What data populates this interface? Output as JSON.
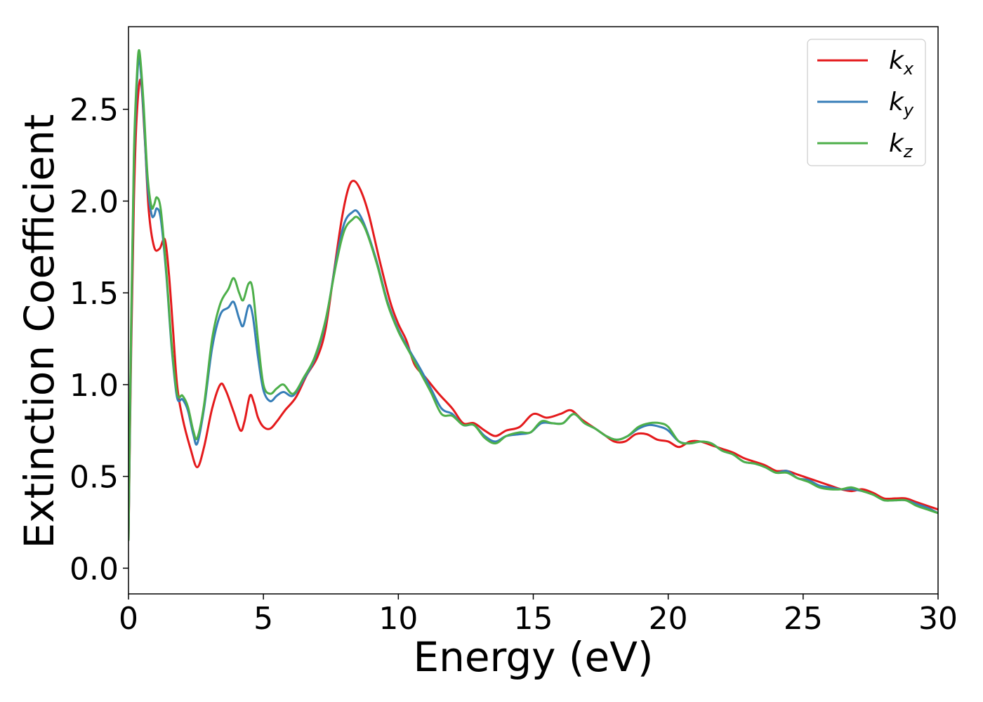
{
  "chart_data": {
    "type": "line",
    "xlabel": "Energy (eV)",
    "ylabel": "Extinction Coefficient",
    "xlim": [
      0,
      30
    ],
    "ylim": [
      -0.14,
      2.95
    ],
    "xticks": [
      0,
      5,
      10,
      15,
      20,
      25,
      30
    ],
    "xtick_labels": [
      "0",
      "5",
      "10",
      "15",
      "20",
      "25",
      "30"
    ],
    "yticks": [
      0.0,
      0.5,
      1.0,
      1.5,
      2.0,
      2.5
    ],
    "ytick_labels": [
      "0.0",
      "0.5",
      "1.0",
      "1.5",
      "2.0",
      "2.5"
    ],
    "grid": false,
    "legend_position": "top-right",
    "series": [
      {
        "name": "k_x",
        "label_main": "k",
        "label_sub": "x",
        "color": "#e41a1c",
        "points": [
          [
            0,
            0.15
          ],
          [
            0.1,
            1.2
          ],
          [
            0.2,
            2.0
          ],
          [
            0.3,
            2.45
          ],
          [
            0.45,
            2.66
          ],
          [
            0.6,
            2.35
          ],
          [
            0.75,
            1.95
          ],
          [
            0.95,
            1.75
          ],
          [
            1.15,
            1.74
          ],
          [
            1.35,
            1.79
          ],
          [
            1.5,
            1.6
          ],
          [
            1.65,
            1.3
          ],
          [
            1.8,
            1.0
          ],
          [
            2.0,
            0.82
          ],
          [
            2.3,
            0.65
          ],
          [
            2.55,
            0.55
          ],
          [
            2.8,
            0.66
          ],
          [
            3.1,
            0.87
          ],
          [
            3.4,
            1.0
          ],
          [
            3.6,
            0.97
          ],
          [
            3.9,
            0.85
          ],
          [
            4.15,
            0.75
          ],
          [
            4.3,
            0.8
          ],
          [
            4.5,
            0.94
          ],
          [
            4.65,
            0.9
          ],
          [
            4.8,
            0.82
          ],
          [
            5.0,
            0.77
          ],
          [
            5.25,
            0.76
          ],
          [
            5.5,
            0.8
          ],
          [
            5.8,
            0.86
          ],
          [
            6.2,
            0.93
          ],
          [
            6.6,
            1.05
          ],
          [
            7.0,
            1.15
          ],
          [
            7.3,
            1.3
          ],
          [
            7.6,
            1.6
          ],
          [
            7.9,
            1.9
          ],
          [
            8.15,
            2.07
          ],
          [
            8.35,
            2.11
          ],
          [
            8.6,
            2.06
          ],
          [
            8.9,
            1.93
          ],
          [
            9.3,
            1.68
          ],
          [
            9.7,
            1.45
          ],
          [
            10.0,
            1.33
          ],
          [
            10.3,
            1.24
          ],
          [
            10.6,
            1.11
          ],
          [
            11.0,
            1.04
          ],
          [
            11.5,
            0.95
          ],
          [
            12.0,
            0.87
          ],
          [
            12.4,
            0.79
          ],
          [
            12.8,
            0.79
          ],
          [
            13.2,
            0.75
          ],
          [
            13.6,
            0.72
          ],
          [
            14.0,
            0.75
          ],
          [
            14.5,
            0.77
          ],
          [
            15.0,
            0.84
          ],
          [
            15.5,
            0.82
          ],
          [
            16.0,
            0.84
          ],
          [
            16.4,
            0.86
          ],
          [
            16.8,
            0.81
          ],
          [
            17.2,
            0.77
          ],
          [
            17.6,
            0.73
          ],
          [
            18.0,
            0.69
          ],
          [
            18.4,
            0.69
          ],
          [
            18.8,
            0.73
          ],
          [
            19.2,
            0.73
          ],
          [
            19.6,
            0.7
          ],
          [
            20.0,
            0.69
          ],
          [
            20.4,
            0.66
          ],
          [
            20.8,
            0.69
          ],
          [
            21.2,
            0.69
          ],
          [
            21.6,
            0.67
          ],
          [
            22.0,
            0.65
          ],
          [
            22.4,
            0.63
          ],
          [
            22.8,
            0.6
          ],
          [
            23.2,
            0.58
          ],
          [
            23.6,
            0.56
          ],
          [
            24.0,
            0.53
          ],
          [
            24.4,
            0.53
          ],
          [
            24.8,
            0.51
          ],
          [
            25.2,
            0.49
          ],
          [
            25.6,
            0.47
          ],
          [
            26.0,
            0.45
          ],
          [
            26.4,
            0.43
          ],
          [
            26.8,
            0.42
          ],
          [
            27.2,
            0.43
          ],
          [
            27.6,
            0.41
          ],
          [
            28.0,
            0.38
          ],
          [
            28.4,
            0.38
          ],
          [
            28.8,
            0.38
          ],
          [
            29.2,
            0.36
          ],
          [
            29.6,
            0.34
          ],
          [
            30.0,
            0.32
          ]
        ]
      },
      {
        "name": "k_y",
        "label_main": "k",
        "label_sub": "y",
        "color": "#377eb8",
        "points": [
          [
            0,
            0.15
          ],
          [
            0.1,
            1.3
          ],
          [
            0.2,
            2.2
          ],
          [
            0.3,
            2.6
          ],
          [
            0.4,
            2.78
          ],
          [
            0.55,
            2.5
          ],
          [
            0.7,
            2.1
          ],
          [
            0.85,
            1.93
          ],
          [
            0.95,
            1.92
          ],
          [
            1.05,
            1.96
          ],
          [
            1.2,
            1.9
          ],
          [
            1.4,
            1.6
          ],
          [
            1.6,
            1.2
          ],
          [
            1.8,
            0.93
          ],
          [
            2.0,
            0.92
          ],
          [
            2.2,
            0.86
          ],
          [
            2.4,
            0.73
          ],
          [
            2.55,
            0.68
          ],
          [
            2.8,
            0.87
          ],
          [
            3.1,
            1.2
          ],
          [
            3.4,
            1.38
          ],
          [
            3.7,
            1.42
          ],
          [
            3.9,
            1.45
          ],
          [
            4.1,
            1.36
          ],
          [
            4.25,
            1.32
          ],
          [
            4.45,
            1.43
          ],
          [
            4.6,
            1.38
          ],
          [
            4.8,
            1.15
          ],
          [
            5.0,
            0.97
          ],
          [
            5.25,
            0.91
          ],
          [
            5.5,
            0.94
          ],
          [
            5.75,
            0.96
          ],
          [
            6.1,
            0.94
          ],
          [
            6.5,
            1.03
          ],
          [
            6.9,
            1.14
          ],
          [
            7.3,
            1.34
          ],
          [
            7.7,
            1.68
          ],
          [
            8.0,
            1.88
          ],
          [
            8.3,
            1.94
          ],
          [
            8.5,
            1.94
          ],
          [
            8.8,
            1.85
          ],
          [
            9.2,
            1.67
          ],
          [
            9.6,
            1.45
          ],
          [
            10.0,
            1.3
          ],
          [
            10.4,
            1.19
          ],
          [
            10.8,
            1.09
          ],
          [
            11.2,
            0.98
          ],
          [
            11.6,
            0.87
          ],
          [
            12.0,
            0.84
          ],
          [
            12.4,
            0.78
          ],
          [
            12.8,
            0.78
          ],
          [
            13.2,
            0.72
          ],
          [
            13.6,
            0.69
          ],
          [
            14.0,
            0.72
          ],
          [
            14.5,
            0.73
          ],
          [
            14.9,
            0.74
          ],
          [
            15.3,
            0.79
          ],
          [
            15.7,
            0.79
          ],
          [
            16.1,
            0.79
          ],
          [
            16.5,
            0.84
          ],
          [
            16.9,
            0.79
          ],
          [
            17.3,
            0.76
          ],
          [
            17.7,
            0.72
          ],
          [
            18.1,
            0.7
          ],
          [
            18.5,
            0.72
          ],
          [
            18.9,
            0.76
          ],
          [
            19.3,
            0.78
          ],
          [
            19.7,
            0.77
          ],
          [
            20.0,
            0.75
          ],
          [
            20.4,
            0.69
          ],
          [
            20.8,
            0.68
          ],
          [
            21.2,
            0.69
          ],
          [
            21.6,
            0.68
          ],
          [
            22.0,
            0.64
          ],
          [
            22.4,
            0.62
          ],
          [
            22.8,
            0.58
          ],
          [
            23.2,
            0.57
          ],
          [
            23.6,
            0.55
          ],
          [
            24.0,
            0.52
          ],
          [
            24.4,
            0.53
          ],
          [
            24.8,
            0.49
          ],
          [
            25.2,
            0.48
          ],
          [
            25.6,
            0.45
          ],
          [
            26.0,
            0.44
          ],
          [
            26.4,
            0.43
          ],
          [
            26.8,
            0.43
          ],
          [
            27.2,
            0.42
          ],
          [
            27.6,
            0.4
          ],
          [
            28.0,
            0.37
          ],
          [
            28.4,
            0.37
          ],
          [
            28.8,
            0.37
          ],
          [
            29.2,
            0.35
          ],
          [
            29.6,
            0.33
          ],
          [
            30.0,
            0.3
          ]
        ]
      },
      {
        "name": "k_z",
        "label_main": "k",
        "label_sub": "z",
        "color": "#4daf4a",
        "points": [
          [
            0,
            0.15
          ],
          [
            0.1,
            1.35
          ],
          [
            0.2,
            2.25
          ],
          [
            0.3,
            2.65
          ],
          [
            0.4,
            2.82
          ],
          [
            0.55,
            2.55
          ],
          [
            0.7,
            2.15
          ],
          [
            0.85,
            1.97
          ],
          [
            0.95,
            1.98
          ],
          [
            1.05,
            2.02
          ],
          [
            1.2,
            1.95
          ],
          [
            1.4,
            1.62
          ],
          [
            1.6,
            1.22
          ],
          [
            1.8,
            0.95
          ],
          [
            2.0,
            0.94
          ],
          [
            2.2,
            0.88
          ],
          [
            2.4,
            0.75
          ],
          [
            2.55,
            0.71
          ],
          [
            2.8,
            0.89
          ],
          [
            3.1,
            1.25
          ],
          [
            3.4,
            1.44
          ],
          [
            3.7,
            1.52
          ],
          [
            3.9,
            1.58
          ],
          [
            4.1,
            1.5
          ],
          [
            4.25,
            1.46
          ],
          [
            4.45,
            1.55
          ],
          [
            4.6,
            1.52
          ],
          [
            4.8,
            1.24
          ],
          [
            5.0,
            1.0
          ],
          [
            5.25,
            0.95
          ],
          [
            5.5,
            0.98
          ],
          [
            5.75,
            1.0
          ],
          [
            6.1,
            0.95
          ],
          [
            6.5,
            1.04
          ],
          [
            6.9,
            1.15
          ],
          [
            7.3,
            1.35
          ],
          [
            7.7,
            1.66
          ],
          [
            8.0,
            1.84
          ],
          [
            8.3,
            1.9
          ],
          [
            8.5,
            1.91
          ],
          [
            8.8,
            1.84
          ],
          [
            9.2,
            1.66
          ],
          [
            9.6,
            1.44
          ],
          [
            10.0,
            1.29
          ],
          [
            10.4,
            1.18
          ],
          [
            10.8,
            1.07
          ],
          [
            11.2,
            0.96
          ],
          [
            11.6,
            0.84
          ],
          [
            12.0,
            0.83
          ],
          [
            12.4,
            0.78
          ],
          [
            12.8,
            0.78
          ],
          [
            13.2,
            0.71
          ],
          [
            13.6,
            0.68
          ],
          [
            14.0,
            0.72
          ],
          [
            14.5,
            0.74
          ],
          [
            14.9,
            0.74
          ],
          [
            15.3,
            0.8
          ],
          [
            15.7,
            0.79
          ],
          [
            16.1,
            0.79
          ],
          [
            16.5,
            0.84
          ],
          [
            16.9,
            0.79
          ],
          [
            17.3,
            0.76
          ],
          [
            17.7,
            0.72
          ],
          [
            18.1,
            0.7
          ],
          [
            18.5,
            0.72
          ],
          [
            18.9,
            0.77
          ],
          [
            19.3,
            0.79
          ],
          [
            19.7,
            0.79
          ],
          [
            20.0,
            0.77
          ],
          [
            20.4,
            0.69
          ],
          [
            20.8,
            0.68
          ],
          [
            21.2,
            0.69
          ],
          [
            21.6,
            0.68
          ],
          [
            22.0,
            0.64
          ],
          [
            22.4,
            0.62
          ],
          [
            22.8,
            0.58
          ],
          [
            23.2,
            0.57
          ],
          [
            23.6,
            0.55
          ],
          [
            24.0,
            0.52
          ],
          [
            24.4,
            0.52
          ],
          [
            24.8,
            0.49
          ],
          [
            25.2,
            0.47
          ],
          [
            25.6,
            0.44
          ],
          [
            26.0,
            0.43
          ],
          [
            26.4,
            0.43
          ],
          [
            26.8,
            0.44
          ],
          [
            27.2,
            0.42
          ],
          [
            27.6,
            0.4
          ],
          [
            28.0,
            0.37
          ],
          [
            28.4,
            0.37
          ],
          [
            28.8,
            0.37
          ],
          [
            29.2,
            0.34
          ],
          [
            29.6,
            0.32
          ],
          [
            30.0,
            0.3
          ]
        ]
      }
    ]
  }
}
